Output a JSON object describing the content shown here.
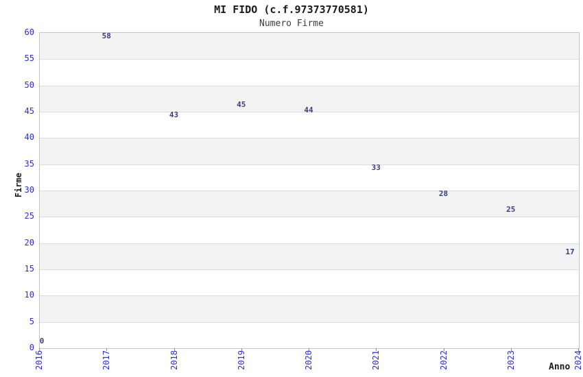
{
  "page": {
    "background": "#ffffff"
  },
  "chart_data": {
    "type": "line",
    "title": "MI FIDO (c.f.97373770581)",
    "subtitle": "Numero Firme",
    "xlabel": "Anno",
    "ylabel": "Firme",
    "categories": [
      "2016",
      "2017",
      "2018",
      "2019",
      "2020",
      "2021",
      "2022",
      "2023",
      "2024"
    ],
    "series": [
      {
        "name": "Numero Firme",
        "values": [
          0,
          58,
          43,
          45,
          44,
          33,
          28,
          25,
          17
        ]
      }
    ],
    "data_labels": [
      "0",
      "58",
      "43",
      "45",
      "44",
      "33",
      "28",
      "25",
      "17"
    ],
    "ylim": [
      0,
      60
    ],
    "ytick_step": 5,
    "yticks": [
      0,
      5,
      10,
      15,
      20,
      25,
      30,
      35,
      40,
      45,
      50,
      55,
      60
    ],
    "grid": "horizontal-bands-alternating",
    "legend": "none",
    "colors": {
      "line": "#7eb1e4",
      "data_label": "#3b3b80",
      "tick_label": "#2e2ed0",
      "title": "#1a1a1a",
      "subtitle": "#3c3c3c",
      "axis_title": "#1a1a1a",
      "band_fill": "#f3f3f3",
      "band_alt_fill": "#ffffff",
      "grid_line": "#dcdcdc",
      "plot_border": "#c4c4c4",
      "x_tick_mark": "#8a8a8a"
    }
  }
}
